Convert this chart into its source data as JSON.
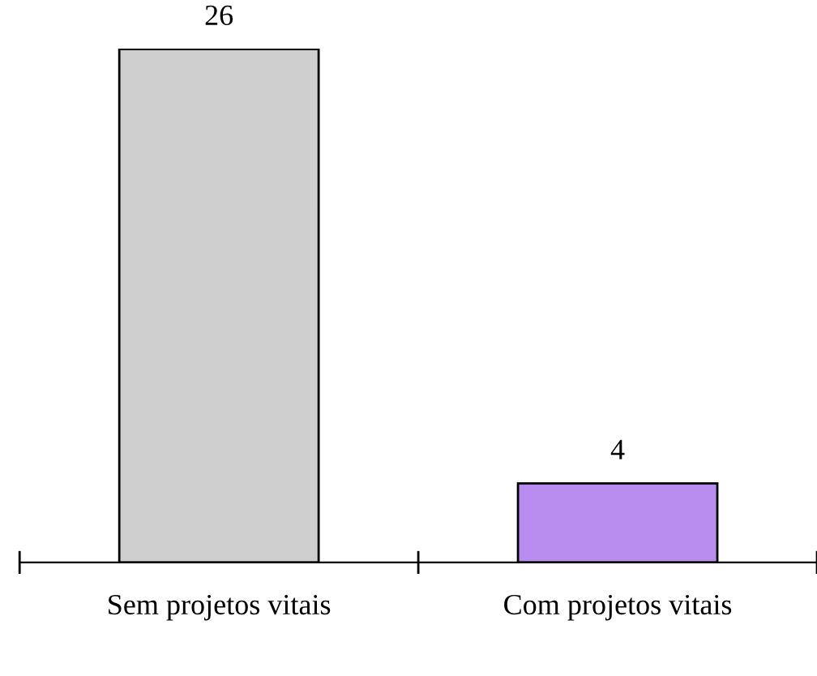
{
  "chart_data": {
    "type": "bar",
    "categories": [
      "Sem projetos vitais",
      "Com projetos vitais"
    ],
    "values": [
      26,
      4
    ],
    "colors": [
      "#cfcfcf",
      "#b98cf0"
    ],
    "data_labels": true,
    "grid": false,
    "legend": false
  }
}
